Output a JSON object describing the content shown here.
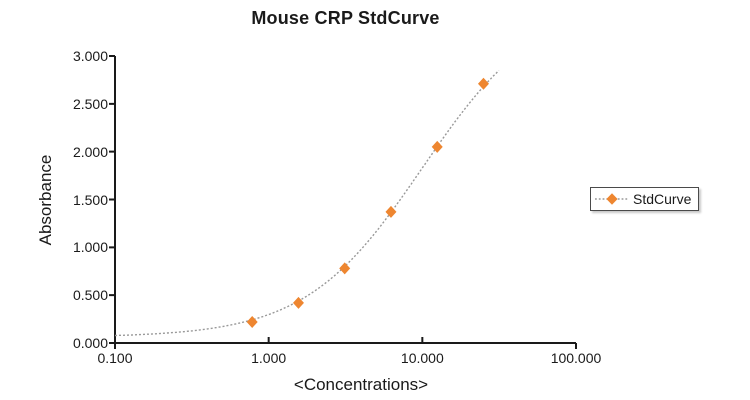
{
  "chart_data": {
    "type": "line",
    "title": "Mouse CRP StdCurve",
    "xlabel": "<Concentrations>",
    "ylabel": "Absorbance",
    "x_scale": "log10",
    "xlim": [
      0.1,
      100
    ],
    "ylim": [
      0,
      3
    ],
    "x_ticks": [
      {
        "value": 0.1,
        "label": "0.100"
      },
      {
        "value": 1,
        "label": "1.000"
      },
      {
        "value": 10,
        "label": "10.000"
      },
      {
        "value": 100,
        "label": "100.000"
      }
    ],
    "y_ticks": [
      {
        "value": 0.0,
        "label": "0.000"
      },
      {
        "value": 0.5,
        "label": "0.500"
      },
      {
        "value": 1.0,
        "label": "1.000"
      },
      {
        "value": 1.5,
        "label": "1.500"
      },
      {
        "value": 2.0,
        "label": "2.000"
      },
      {
        "value": 2.5,
        "label": "2.500"
      },
      {
        "value": 3.0,
        "label": "3.000"
      }
    ],
    "grid": false,
    "legend": {
      "label": "StdCurve",
      "position": "right"
    },
    "series": [
      {
        "name": "StdCurve",
        "marker": "diamond",
        "marker_color": "#EE8630",
        "line_color": "#999999",
        "line_style": "dotted",
        "points": [
          {
            "x": 0.781,
            "y": 0.22
          },
          {
            "x": 1.563,
            "y": 0.42
          },
          {
            "x": 3.125,
            "y": 0.78
          },
          {
            "x": 6.25,
            "y": 1.37
          },
          {
            "x": 12.5,
            "y": 2.05
          },
          {
            "x": 25.0,
            "y": 2.71
          }
        ],
        "fit_curve": {
          "model": "4PL",
          "a": 0.06,
          "d": 3.6,
          "c": 10.0,
          "b": 1.143,
          "x_start": 0.1,
          "x_end": 31.5
        }
      }
    ],
    "colors": {
      "axis": "#1a1a1a",
      "text": "#1a1a1a",
      "background": "#ffffff"
    }
  }
}
